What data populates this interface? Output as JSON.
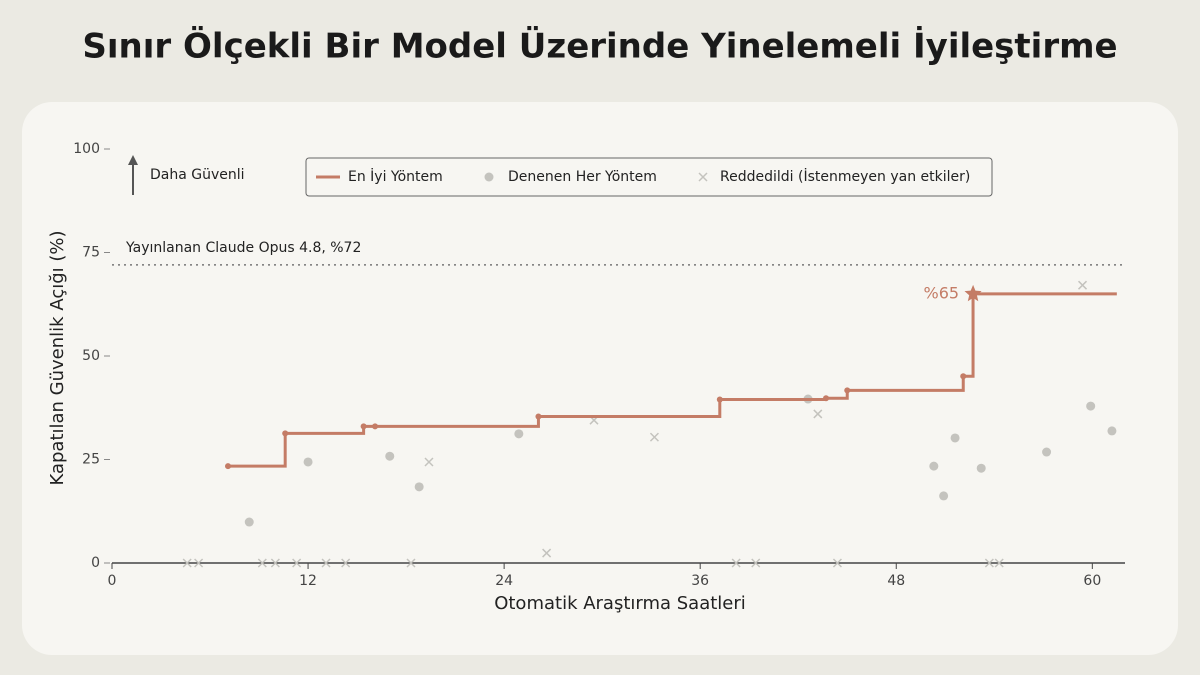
{
  "chart_data": {
    "type": "line",
    "title": "Sınır Ölçekli Bir Model Üzerinde Yinelemeli İyileştirme",
    "x_label": "Otomatik Araştırma Saatleri",
    "y_label": "Kapatılan Güvenlik Açığı (%)",
    "direction_label": "Daha Güvenli",
    "xlim": [
      0,
      62
    ],
    "ylim": [
      0,
      100
    ],
    "xticks": [
      0,
      12,
      24,
      36,
      48,
      60
    ],
    "yticks": [
      0,
      25,
      50,
      75,
      100
    ],
    "reference": {
      "value": 72,
      "label": "Yayınlanan Claude Opus 4.8, %72"
    },
    "annotation": "%65",
    "series": [
      {
        "name": "En İyi Yöntem",
        "style": "step",
        "color": "#c47c66",
        "x": [
          7.1,
          10.6,
          15.4,
          16.1,
          26.1,
          37.2,
          43.7,
          45.0,
          52.1,
          52.7,
          61.5
        ],
        "values": [
          23.4,
          31.3,
          33.0,
          33.0,
          35.4,
          39.5,
          39.8,
          41.7,
          45.1,
          65.0,
          65.0
        ]
      },
      {
        "name": "Denenen Her Yöntem",
        "style": "dot",
        "color": "#c4c3be",
        "x": [
          8.4,
          12.0,
          17.0,
          18.8,
          24.9,
          42.6,
          50.3,
          50.9,
          51.6,
          53.2,
          57.2,
          59.9,
          61.2
        ],
        "values": [
          9.9,
          24.4,
          25.8,
          18.4,
          31.2,
          39.6,
          23.4,
          16.2,
          30.2,
          22.9,
          26.8,
          37.9,
          31.9
        ]
      },
      {
        "name": "Reddedildi (İstenmeyen yan etkiler)",
        "style": "cross",
        "color": "#c4c3be",
        "x": [
          4.6,
          5.3,
          9.2,
          10.0,
          11.3,
          13.1,
          14.3,
          18.3,
          38.2,
          39.4,
          44.4,
          53.7,
          54.3,
          19.4,
          26.6,
          29.5,
          33.2,
          43.2,
          59.4
        ],
        "values": [
          0,
          0,
          0,
          0,
          0,
          0,
          0,
          0,
          0,
          0,
          0,
          0,
          0,
          24.4,
          2.4,
          34.5,
          30.4,
          36.0,
          67.1
        ]
      }
    ]
  }
}
